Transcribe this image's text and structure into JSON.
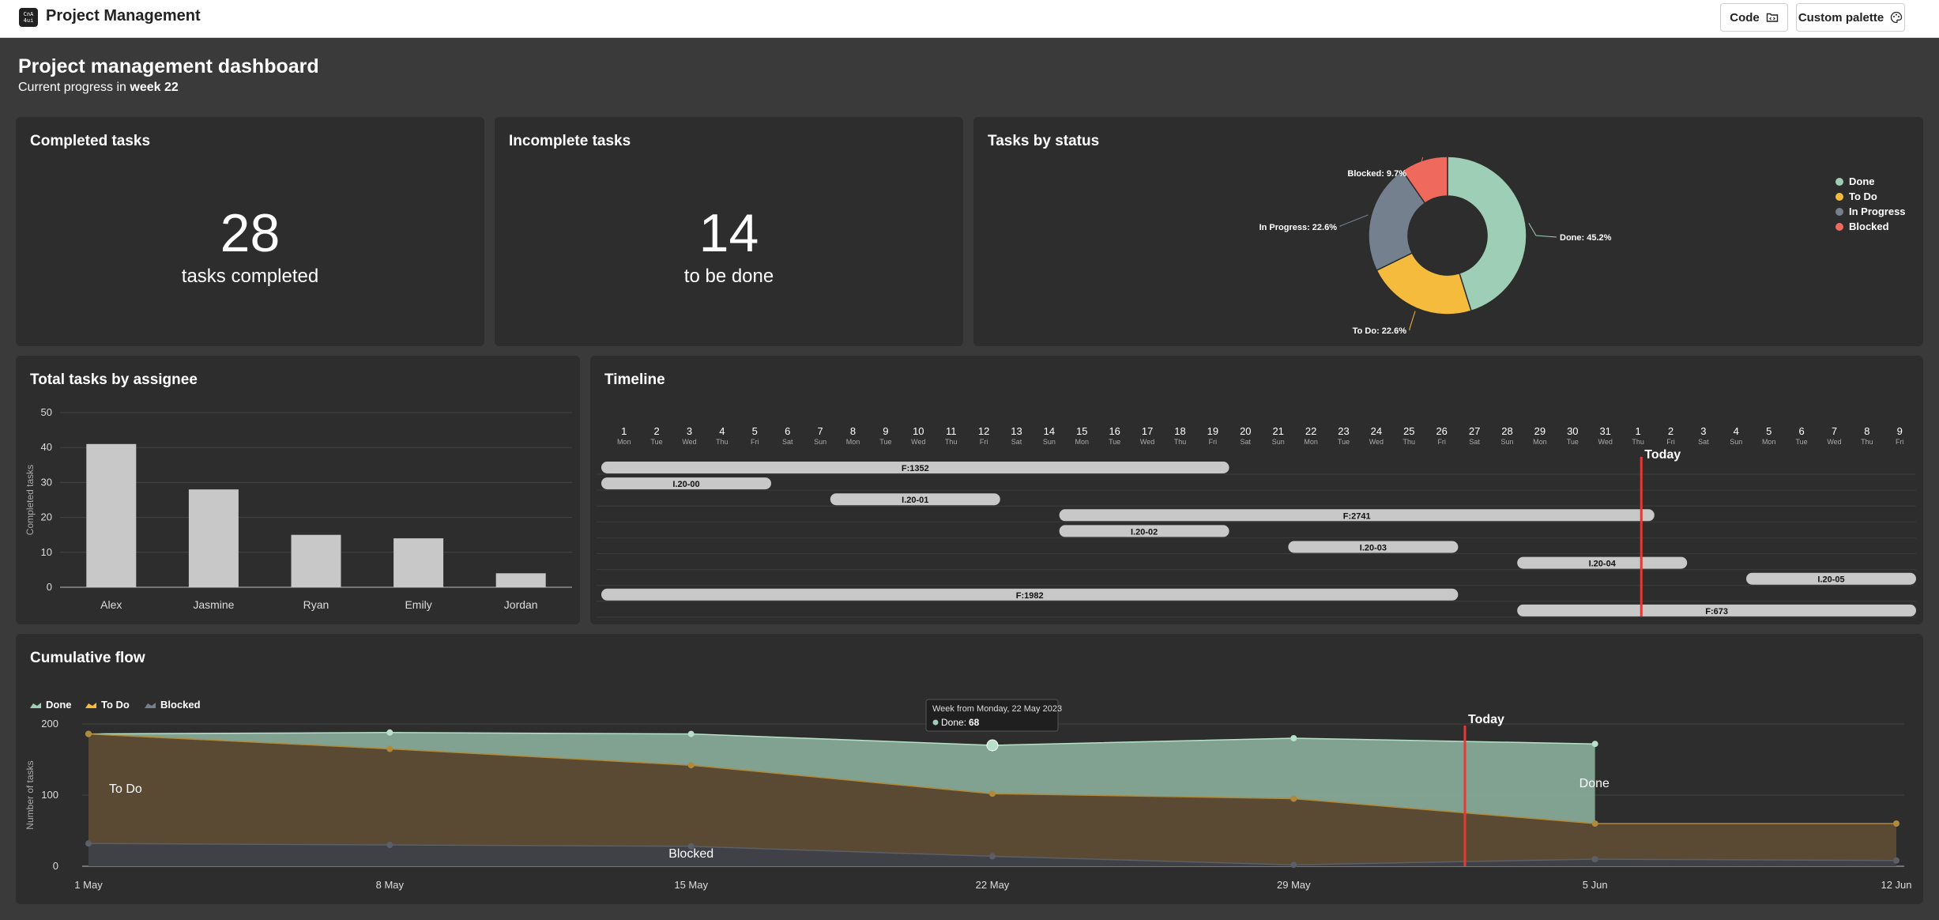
{
  "app": {
    "title": "Project Management",
    "code_button": "Code",
    "palette_button": "Custom palette",
    "logo_text": "CnA 4ui"
  },
  "dashboard": {
    "title": "Project management dashboard",
    "subtitle_prefix": "Current progress in",
    "subtitle_week": "week 22"
  },
  "kpis": {
    "completed": {
      "title": "Completed tasks",
      "value": "28",
      "label": "tasks completed"
    },
    "incomplete": {
      "title": "Incomplete tasks",
      "value": "14",
      "label": "to be done"
    }
  },
  "status_card": {
    "title": "Tasks by status"
  },
  "assignee_card": {
    "title": "Total tasks by assignee"
  },
  "timeline_card": {
    "title": "Timeline"
  },
  "flow_card": {
    "title": "Cumulative flow"
  },
  "chart_data": [
    {
      "id": "status",
      "type": "pie",
      "title": "Tasks by status",
      "labels": [
        "Done",
        "To Do",
        "In Progress",
        "Blocked"
      ],
      "values": [
        45.2,
        22.6,
        22.6,
        9.7
      ],
      "slice_labels": [
        "Done: 45.2%",
        "To Do: 22.6%",
        "In Progress: 22.6%",
        "Blocked: 9.7%"
      ],
      "colors": [
        "#9ecfb6",
        "#f4bb3d",
        "#75808f",
        "#ef6a5c"
      ],
      "legend": "right"
    },
    {
      "id": "assignee",
      "type": "bar",
      "title": "Total tasks by assignee",
      "categories": [
        "Alex",
        "Jasmine",
        "Ryan",
        "Emily",
        "Jordan"
      ],
      "values": [
        41,
        28,
        15,
        14,
        4
      ],
      "ylabel": "Completed tasks",
      "ylim": [
        0,
        50
      ],
      "yticks": [
        0,
        10,
        20,
        30,
        40,
        50
      ],
      "color": "#c8c8c8"
    },
    {
      "id": "timeline",
      "type": "gantt",
      "title": "Timeline",
      "days": [
        {
          "d": "1",
          "w": "Mon"
        },
        {
          "d": "2",
          "w": "Tue"
        },
        {
          "d": "3",
          "w": "Wed"
        },
        {
          "d": "4",
          "w": "Thu"
        },
        {
          "d": "5",
          "w": "Fri"
        },
        {
          "d": "6",
          "w": "Sat"
        },
        {
          "d": "7",
          "w": "Sun"
        },
        {
          "d": "8",
          "w": "Mon"
        },
        {
          "d": "9",
          "w": "Tue"
        },
        {
          "d": "10",
          "w": "Wed"
        },
        {
          "d": "11",
          "w": "Thu"
        },
        {
          "d": "12",
          "w": "Fri"
        },
        {
          "d": "13",
          "w": "Sat"
        },
        {
          "d": "14",
          "w": "Sun"
        },
        {
          "d": "15",
          "w": "Mon"
        },
        {
          "d": "16",
          "w": "Tue"
        },
        {
          "d": "17",
          "w": "Wed"
        },
        {
          "d": "18",
          "w": "Thu"
        },
        {
          "d": "19",
          "w": "Fri"
        },
        {
          "d": "20",
          "w": "Sat"
        },
        {
          "d": "21",
          "w": "Sun"
        },
        {
          "d": "22",
          "w": "Mon"
        },
        {
          "d": "23",
          "w": "Tue"
        },
        {
          "d": "24",
          "w": "Wed"
        },
        {
          "d": "25",
          "w": "Thu"
        },
        {
          "d": "26",
          "w": "Fri"
        },
        {
          "d": "27",
          "w": "Sat"
        },
        {
          "d": "28",
          "w": "Sun"
        },
        {
          "d": "29",
          "w": "Mon"
        },
        {
          "d": "30",
          "w": "Tue"
        },
        {
          "d": "31",
          "w": "Wed"
        },
        {
          "d": "1",
          "w": "Thu"
        },
        {
          "d": "2",
          "w": "Fri"
        },
        {
          "d": "3",
          "w": "Sat"
        },
        {
          "d": "4",
          "w": "Sun"
        },
        {
          "d": "5",
          "w": "Mon"
        },
        {
          "d": "6",
          "w": "Tue"
        },
        {
          "d": "7",
          "w": "Wed"
        },
        {
          "d": "8",
          "w": "Thu"
        },
        {
          "d": "9",
          "w": "Fri"
        }
      ],
      "tasks": [
        {
          "name": "F:1352",
          "start": 1,
          "end": 19
        },
        {
          "name": "I.20-00",
          "start": 1,
          "end": 5
        },
        {
          "name": "I.20-01",
          "start": 8,
          "end": 12
        },
        {
          "name": "F:2741",
          "start": 15,
          "end": 32
        },
        {
          "name": "I.20-02",
          "start": 15,
          "end": 19
        },
        {
          "name": "I.20-03",
          "start": 22,
          "end": 26
        },
        {
          "name": "I.20-04",
          "start": 29,
          "end": 33
        },
        {
          "name": "I.20-05",
          "start": 36,
          "end": 40
        },
        {
          "name": "F:1982",
          "start": 1,
          "end": 26
        },
        {
          "name": "F:673",
          "start": 29,
          "end": 40
        }
      ],
      "today_label": "Today",
      "today_day_index": 32,
      "bar_color": "#c8c8c8",
      "today_color": "#e53935"
    },
    {
      "id": "flow",
      "type": "area",
      "title": "Cumulative flow",
      "x": [
        "1 May",
        "8 May",
        "15 May",
        "22 May",
        "29 May",
        "5 Jun",
        "12 Jun"
      ],
      "series": [
        {
          "name": "Blocked",
          "values": [
            32,
            30,
            28,
            14,
            2,
            10,
            8
          ],
          "color": "#75808f"
        },
        {
          "name": "To Do",
          "values": [
            186,
            165,
            142,
            102,
            95,
            60,
            60
          ],
          "color": "#f4bb3d"
        },
        {
          "name": "Done",
          "values": [
            186,
            188,
            186,
            170,
            180,
            172,
            null
          ],
          "color": "#9ecfb6"
        }
      ],
      "area_labels": [
        "To Do",
        "Done",
        "Blocked"
      ],
      "ylabel": "Number of tasks",
      "ylim": [
        0,
        200
      ],
      "yticks": [
        0,
        100,
        200
      ],
      "legend": "top-left",
      "today_label": "Today",
      "tooltip": {
        "title": "Week from Monday, 22 May 2023",
        "label": "Done:",
        "value": "68"
      }
    }
  ]
}
